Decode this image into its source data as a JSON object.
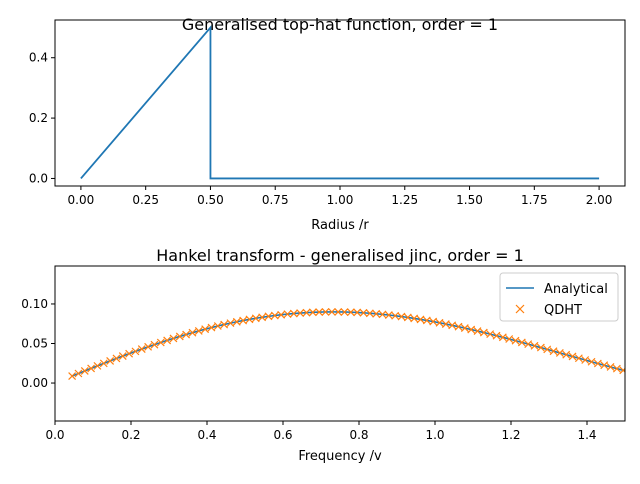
{
  "chart_data": [
    {
      "type": "line",
      "title": "Generalised top-hat function, order = 1",
      "xlabel": "Radius /r",
      "ylabel": "",
      "xlim": [
        -0.1,
        2.1
      ],
      "ylim": [
        -0.025,
        0.525
      ],
      "xticks": [
        0.0,
        0.25,
        0.5,
        0.75,
        1.0,
        1.25,
        1.5,
        1.75,
        2.0
      ],
      "xtick_labels": [
        "0.00",
        "0.25",
        "0.50",
        "0.75",
        "1.00",
        "1.25",
        "1.50",
        "1.75",
        "2.00"
      ],
      "yticks": [
        0.0,
        0.2,
        0.4
      ],
      "ytick_labels": [
        "0.0",
        "0.2",
        "0.4"
      ],
      "grid": false,
      "series": [
        {
          "color": "#1f77b4",
          "x": [
            0.0,
            0.5,
            0.5,
            2.0
          ],
          "y": [
            0.0,
            0.5,
            0.0,
            0.0
          ]
        }
      ]
    },
    {
      "type": "line",
      "title": "Hankel transform - generalised jinc, order = 1",
      "xlabel": "Frequency /v",
      "ylabel": "",
      "xlim": [
        0.0,
        1.5
      ],
      "ylim": [
        -0.048,
        0.148
      ],
      "xticks": [
        0.0,
        0.2,
        0.4,
        0.6,
        0.8,
        1.0,
        1.2,
        1.4
      ],
      "xtick_labels": [
        "0.0",
        "0.2",
        "0.4",
        "0.6",
        "0.8",
        "1.0",
        "1.2",
        "1.4"
      ],
      "yticks": [
        0.0,
        0.05,
        0.1
      ],
      "ytick_labels": [
        "0.00",
        "0.05",
        "0.10"
      ],
      "grid": false,
      "legend_position": "top-right",
      "legend": [
        {
          "name": "Analytical",
          "marker": "line",
          "color": "#1f77b4"
        },
        {
          "name": "QDHT",
          "marker": "x",
          "color": "#ff7f0e"
        }
      ],
      "series": [
        {
          "name": "Analytical",
          "color": "#1f77b4",
          "x_start": 0.045,
          "x_end": 1.5,
          "samples": 600,
          "function": "J2(pi*v)/(2*pi*v)"
        },
        {
          "name": "QDHT",
          "color": "#ff7f0e",
          "marker": "x",
          "x_start": 0.045,
          "x_end": 1.5,
          "x_step": 0.01667
        }
      ]
    }
  ]
}
